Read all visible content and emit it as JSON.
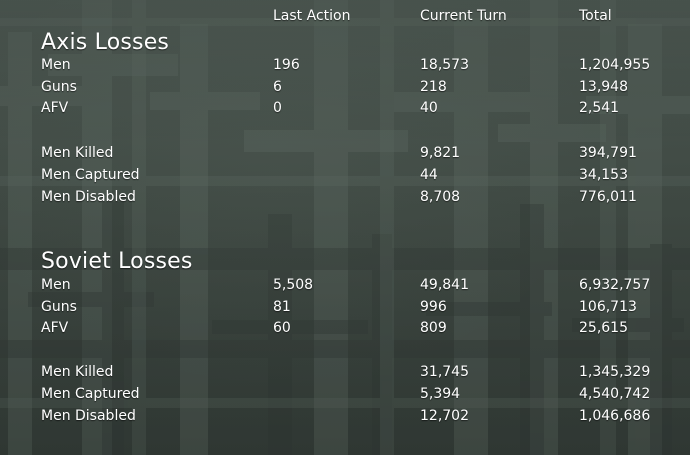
{
  "headers": {
    "last_action": "Last Action",
    "current_turn": "Current Turn",
    "total": "Total"
  },
  "axis": {
    "title": "Axis Losses",
    "rows": [
      {
        "label": "Men",
        "last": "196",
        "turn": "18,573",
        "total": "1,204,955"
      },
      {
        "label": "Guns",
        "last": "6",
        "turn": "218",
        "total": "13,948"
      },
      {
        "label": "AFV",
        "last": "0",
        "turn": "40",
        "total": "2,541"
      },
      {
        "label": "Men Killed",
        "last": "",
        "turn": "9,821",
        "total": "394,791"
      },
      {
        "label": "Men Captured",
        "last": "",
        "turn": "44",
        "total": "34,153"
      },
      {
        "label": "Men Disabled",
        "last": "",
        "turn": "8,708",
        "total": "776,011"
      }
    ]
  },
  "soviet": {
    "title": "Soviet Losses",
    "rows": [
      {
        "label": "Men",
        "last": "5,508",
        "turn": "49,841",
        "total": "6,932,757"
      },
      {
        "label": "Guns",
        "last": "81",
        "turn": "996",
        "total": "106,713"
      },
      {
        "label": "AFV",
        "last": "60",
        "turn": "809",
        "total": "25,615"
      },
      {
        "label": "Men Killed",
        "last": "",
        "turn": "31,745",
        "total": "1,345,329"
      },
      {
        "label": "Men Captured",
        "last": "",
        "turn": "5,394",
        "total": "4,540,742"
      },
      {
        "label": "Men Disabled",
        "last": "",
        "turn": "12,702",
        "total": "1,046,686"
      }
    ]
  },
  "background": {
    "base_color": "#3f4943",
    "cross_color": "#4e5a53",
    "shadow_color": "#313934",
    "icon": "cemetery-crosses-background"
  }
}
